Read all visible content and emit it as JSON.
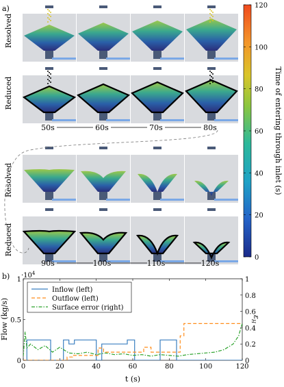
{
  "panel_a": {
    "label": "a)",
    "rows": [
      "Resolved",
      "Reduced",
      "Resolved",
      "Reduced"
    ],
    "top_times": [
      "50s",
      "60s",
      "70s",
      "80s"
    ],
    "bottom_times": [
      "90s",
      "100s",
      "110s",
      "120s"
    ],
    "colorbar": {
      "label": "Time of entering through inlet (s)",
      "ticks": [
        "0",
        "20",
        "40",
        "60",
        "80",
        "100",
        "120"
      ],
      "range": [
        0,
        120
      ]
    }
  },
  "panel_b": {
    "label": "b)",
    "left_multiplier": "·10",
    "left_multiplier_exp": "4",
    "ylabel_left": "Flow (kg/s)",
    "ylabel_right": "ε",
    "ylabel_right_sub": "H",
    "xlabel": "t (s)"
  },
  "colors": {
    "inflow": "#3a7fc0",
    "outflow": "#ff8c1a",
    "surface_error": "#2aa22a",
    "inlet_bar": "#4a5a78",
    "outlet_bar": "#7aa8e6",
    "hopper_bg": "#d8dade"
  },
  "chart_data": {
    "type": "line",
    "xlim": [
      0,
      120
    ],
    "ylim_left": [
      0,
      1
    ],
    "ylim_right": [
      0,
      1
    ],
    "x_ticks": [
      "0",
      "20",
      "40",
      "60",
      "80",
      "100",
      "120"
    ],
    "y_left_ticks": [
      "0",
      "0.5",
      "1"
    ],
    "y_right_ticks": [
      "0",
      "0.2",
      "0.4",
      "0.6",
      "0.8",
      "1"
    ],
    "legend_position": "top-left",
    "series": [
      {
        "name": "Inflow (left)",
        "axis": "left",
        "style": "solid",
        "x": [
          0,
          2,
          2,
          15,
          15,
          22,
          22,
          25,
          25,
          28,
          28,
          40,
          40,
          43,
          43,
          57,
          57,
          61,
          61,
          75,
          75,
          84,
          84,
          120
        ],
        "y": [
          0,
          0,
          0.25,
          0.25,
          0,
          0,
          0.25,
          0.25,
          0.2,
          0.2,
          0.25,
          0.25,
          0,
          0,
          0.2,
          0.2,
          0.25,
          0.25,
          0,
          0,
          0.25,
          0.25,
          0,
          0
        ]
      },
      {
        "name": "Outflow (left)",
        "axis": "left",
        "style": "dashed",
        "x": [
          0,
          24,
          24,
          27,
          27,
          41,
          41,
          44,
          44,
          66,
          66,
          70,
          70,
          86,
          86,
          88,
          88,
          120
        ],
        "y": [
          0,
          0,
          0.04,
          0.04,
          0.06,
          0.06,
          0.15,
          0.15,
          0.1,
          0.1,
          0.16,
          0.16,
          0.1,
          0.1,
          0.3,
          0.3,
          0.45,
          0.45
        ]
      },
      {
        "name": "Surface error (right)",
        "axis": "right",
        "style": "dashdot",
        "x": [
          0,
          1,
          2,
          4,
          8,
          12,
          16,
          20,
          25,
          30,
          35,
          40,
          45,
          50,
          55,
          60,
          65,
          70,
          75,
          80,
          85,
          90,
          95,
          100,
          105,
          110,
          115,
          118,
          120
        ],
        "y": [
          0.05,
          0.35,
          0.15,
          0.2,
          0.13,
          0.18,
          0.1,
          0.16,
          0.09,
          0.08,
          0.1,
          0.07,
          0.09,
          0.07,
          0.08,
          0.06,
          0.07,
          0.05,
          0.07,
          0.06,
          0.05,
          0.07,
          0.08,
          0.09,
          0.1,
          0.13,
          0.2,
          0.3,
          0.45
        ]
      }
    ]
  }
}
